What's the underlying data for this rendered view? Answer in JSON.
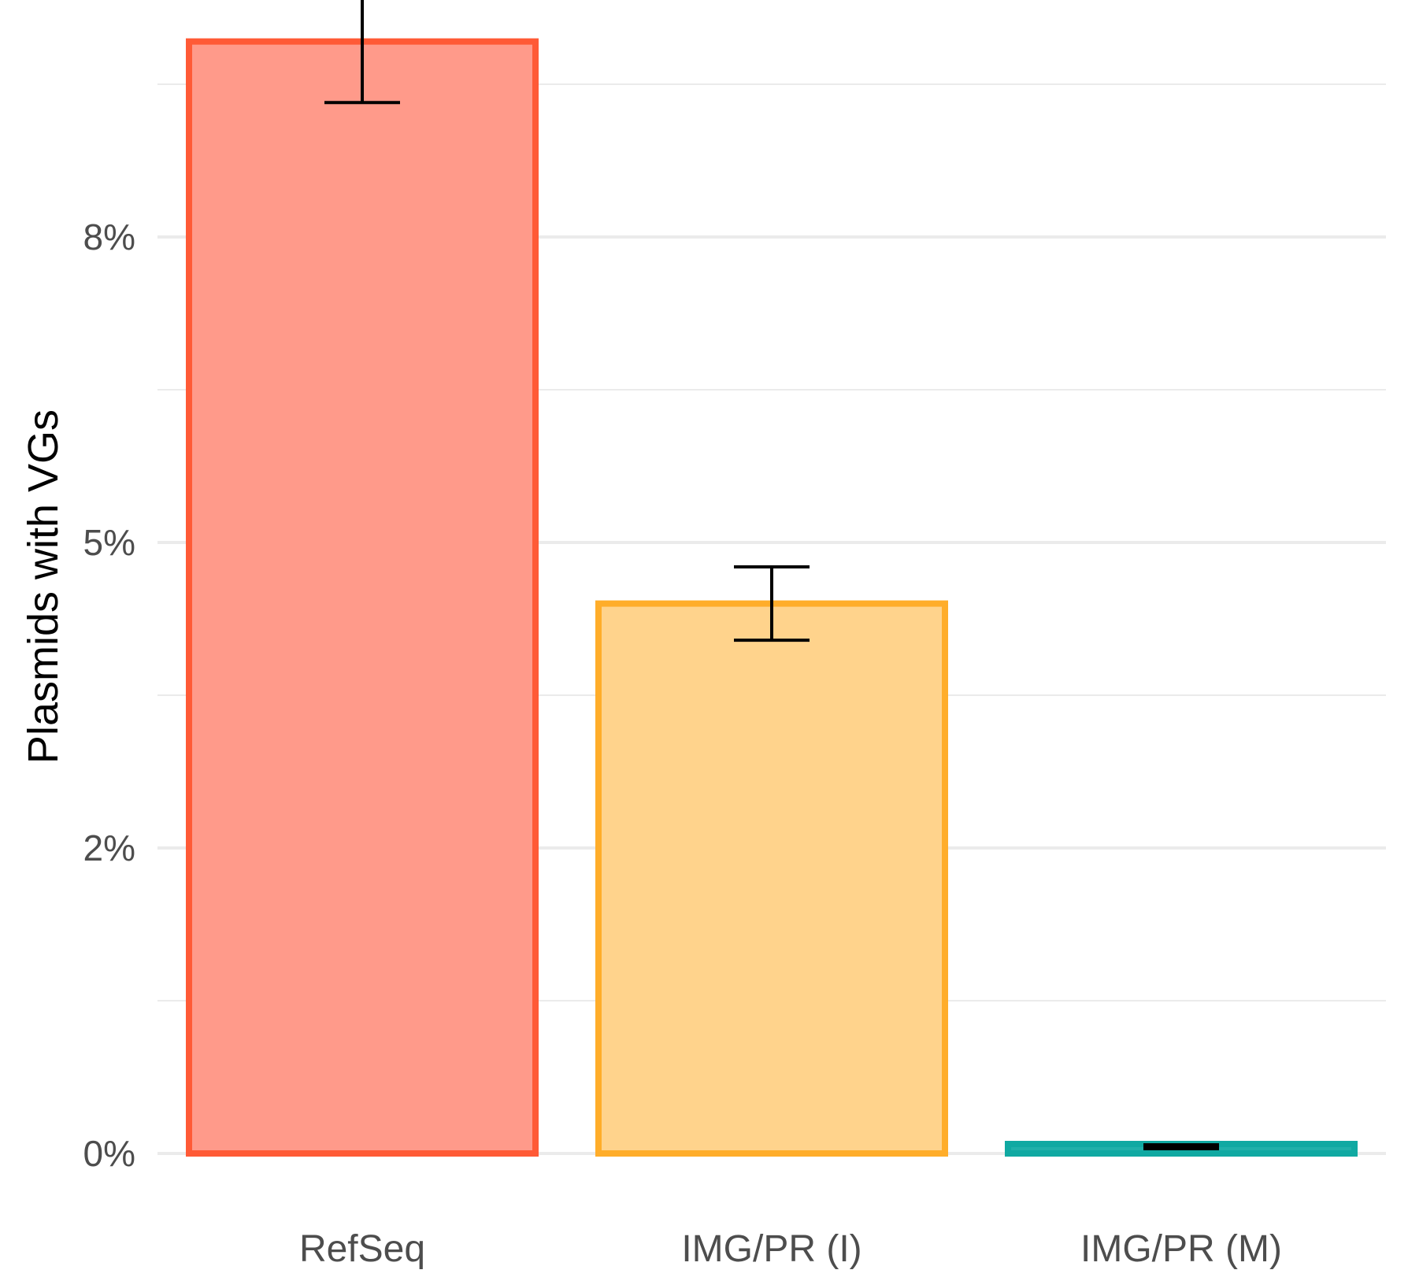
{
  "chart_data": {
    "type": "bar",
    "title": "",
    "xlabel": "",
    "ylabel": "Plasmids with VGs",
    "categories": [
      "RefSeq",
      "IMG/PR (I)",
      "IMG/PR (M)"
    ],
    "values": [
      9.1,
      4.5,
      0.07
    ],
    "error_low": [
      8.6,
      4.2,
      0.06
    ],
    "error_high": [
      9.6,
      4.8,
      0.08
    ],
    "ylim": [
      0,
      9.7
    ],
    "yticks": [
      0,
      2.5,
      5,
      7.5
    ],
    "ytick_labels": [
      "0%",
      "2%",
      "5%",
      "8%"
    ],
    "minor_gridlines": [
      1.25,
      3.75,
      6.25,
      8.75
    ],
    "grid": true,
    "legend": "none",
    "colors": {
      "fill": [
        "#ff9a8a",
        "#ffd38c",
        "#20b0aa"
      ],
      "stroke": [
        "#ff5a36",
        "#ffad2a",
        "#10a9a2"
      ],
      "grid": "#ebebeb",
      "errorbar": "#000000"
    }
  }
}
